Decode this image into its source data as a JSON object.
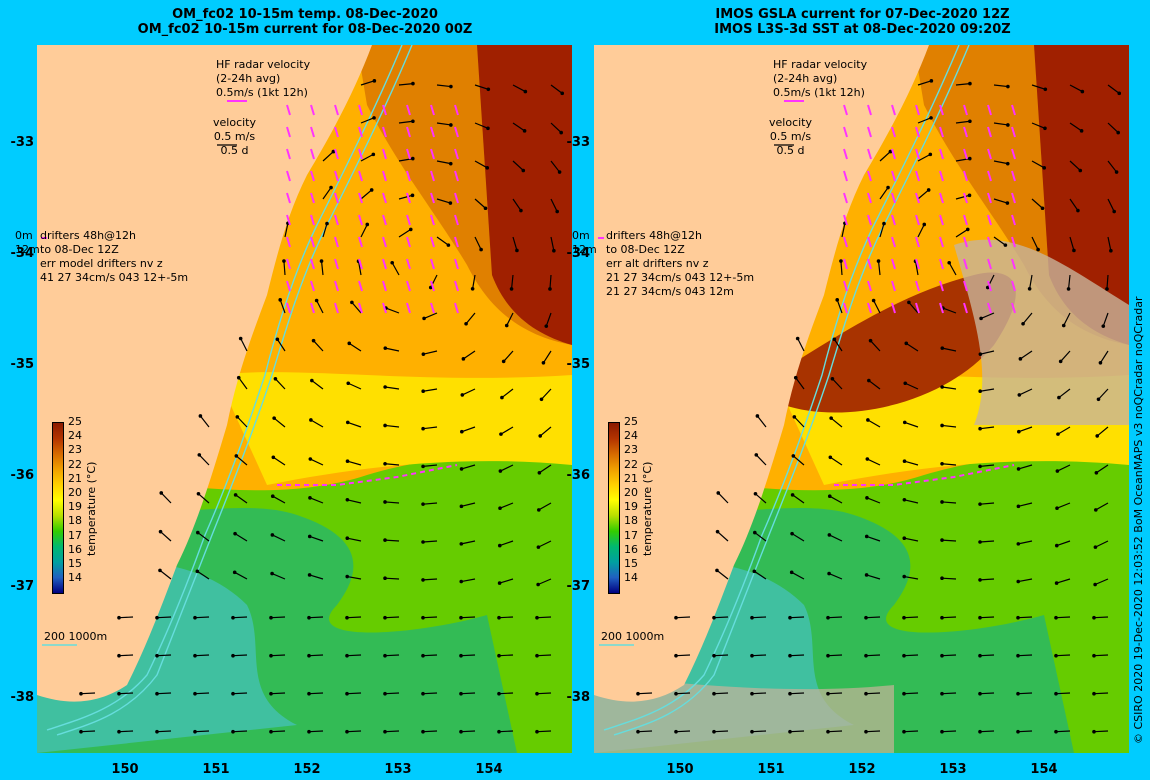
{
  "colors": {
    "background": "#00ccff",
    "land": "#ffcc99",
    "arrow": "#000000",
    "drifter": "#ff33ff",
    "contour": "#66dddd",
    "missing": "#c8b49a"
  },
  "colorbar": {
    "label": "temperature (°C)",
    "ticks": [
      "25",
      "24",
      "23",
      "22",
      "21",
      "20",
      "19",
      "18",
      "17",
      "16",
      "15",
      "14"
    ],
    "colors": [
      "#8b1a00",
      "#b33300",
      "#d66a00",
      "#f0a000",
      "#ffd000",
      "#ffff00",
      "#b8e000",
      "#33cc00",
      "#00b870",
      "#00a0a0",
      "#2060c0",
      "#000080"
    ]
  },
  "y_ticks": [
    "-33",
    "-34",
    "-35",
    "-36",
    "-37",
    "-38"
  ],
  "x_ticks": [
    "150",
    "151",
    "152",
    "153",
    "154"
  ],
  "credit": "© CSIRO 2020   19-Dec-2020 12:03:52 BoM OceanMAPS v3 noQCradar noQCradar",
  "panels": [
    {
      "title1": "OM_fc02 10-15m temp. 08-Dec-2020",
      "title2": "OM_fc02 10-15m current for 08-Dec-2020 00Z",
      "hf": [
        "HF radar velocity",
        "(2-24h avg)",
        "0.5m/s (1kt 12h)"
      ],
      "vel": [
        "velocity",
        "0.5 m/s",
        "0.5 d"
      ],
      "drift_depth": [
        "0m",
        "12m"
      ],
      "drift": [
        "drifters 48h@12h",
        "to 08-Dec 12Z",
        "err model drifters nv z",
        "41 27 34cm/s 043 12+-5m"
      ],
      "scale": "200  1000m"
    },
    {
      "title1": "IMOS GSLA current for 07-Dec-2020 12Z",
      "title2": "IMOS L3S-3d SST at 08-Dec-2020 09:20Z",
      "hf": [
        "HF radar velocity",
        "(2-24h avg)",
        "0.5m/s (1kt 12h)"
      ],
      "vel": [
        "velocity",
        "0.5 m/s",
        "0.5 d"
      ],
      "drift_depth": [
        "0m",
        "12m"
      ],
      "drift": [
        "drifters 48h@12h",
        "to 08-Dec 12Z",
        "err alt drifters nv z",
        "21 27 34cm/s 043 12+-5m",
        "21 27 34cm/s 043 12m"
      ],
      "scale": "200  1000m"
    }
  ]
}
